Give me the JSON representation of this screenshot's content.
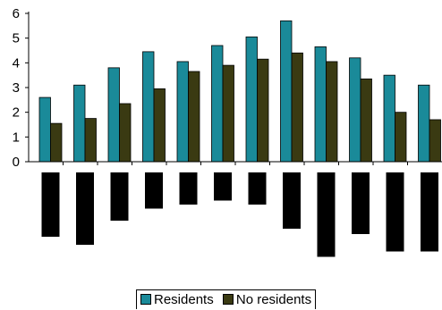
{
  "colors": {
    "residents": "#1a8a99",
    "no_residents": "#3a3a12",
    "lower_bars": "#000000",
    "axis": "#000000"
  },
  "chart_data": {
    "type": "bar",
    "categories": [
      "",
      "",
      "",
      "",
      "",
      "",
      "",
      "",
      "",
      "",
      "",
      ""
    ],
    "series": [
      {
        "name": "Residents",
        "values": [
          2.6,
          3.1,
          3.8,
          4.45,
          4.05,
          4.7,
          5.05,
          5.7,
          4.65,
          4.2,
          3.5,
          3.1
        ]
      },
      {
        "name": "No residents",
        "values": [
          1.55,
          1.75,
          2.35,
          2.95,
          3.65,
          3.9,
          4.15,
          4.4,
          4.05,
          3.35,
          2.0,
          1.7
        ]
      }
    ],
    "lower_bars": [
      2.4,
      2.7,
      1.8,
      1.35,
      1.2,
      1.05,
      1.2,
      2.1,
      3.15,
      2.3,
      2.95,
      2.95
    ],
    "y_ticks": [
      "0",
      "1",
      "2",
      "3",
      "4",
      "5",
      "6"
    ],
    "ylim": [
      0,
      6
    ],
    "legend_position": "bottom",
    "grid": false,
    "title": "",
    "xlabel": "",
    "ylabel": ""
  },
  "legend": {
    "residents": "Residents",
    "no_residents": "No residents"
  }
}
